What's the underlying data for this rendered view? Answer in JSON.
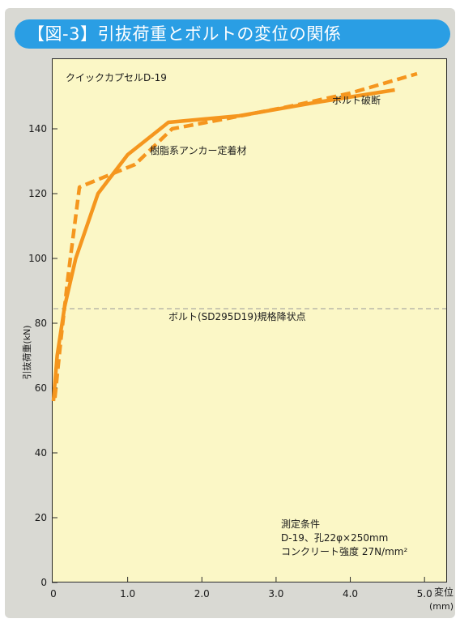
{
  "title": "【図-3】引抜荷重とボルトの変位の関係",
  "colors": {
    "frame": "#d9d9d3",
    "title_bar": "#2a9ee4",
    "plot_bg": "#fbf7c6",
    "series": "#f5961e",
    "threshold": "#999999"
  },
  "chart_data": {
    "type": "line",
    "xlabel": "変位",
    "xunit": "(mm)",
    "ylabel": "引抜荷重(kN)",
    "xlim": [
      0,
      5.5
    ],
    "ylim": [
      0,
      160
    ],
    "xticks": [
      "0",
      "1.0",
      "2.0",
      "3.0",
      "4.0",
      "5.0"
    ],
    "yticks": [
      "0",
      "20",
      "40",
      "60",
      "80",
      "100",
      "120",
      "140"
    ],
    "grid": false,
    "series": [
      {
        "name": "クイックカプセルD-19",
        "style": "dashed",
        "x": [
          0.02,
          0.1,
          0.2,
          0.35,
          1.1,
          1.6,
          2.3,
          3.2,
          4.0,
          4.9
        ],
        "y": [
          57,
          75,
          95,
          122,
          129,
          140,
          143,
          147,
          151,
          157
        ]
      },
      {
        "name": "樹脂系アンカー定着材",
        "style": "solid",
        "x": [
          0.0,
          0.05,
          0.15,
          0.3,
          0.6,
          1.0,
          1.55,
          2.5,
          3.5,
          4.6
        ],
        "y": [
          56,
          70,
          85,
          100,
          120,
          132,
          142,
          144,
          148,
          152
        ]
      }
    ],
    "threshold": {
      "y": 84.5,
      "label": "ボルト(SD295D19)規格降状点"
    },
    "annotations": {
      "series1_label": "クイックカプセルD-19",
      "series2_label": "樹脂系アンカー定着材",
      "end_label": "ボルト破断",
      "conditions": [
        "測定条件",
        "D-19、孔22φ×250mm",
        "コンクリート強度 27N/mm²"
      ]
    }
  }
}
